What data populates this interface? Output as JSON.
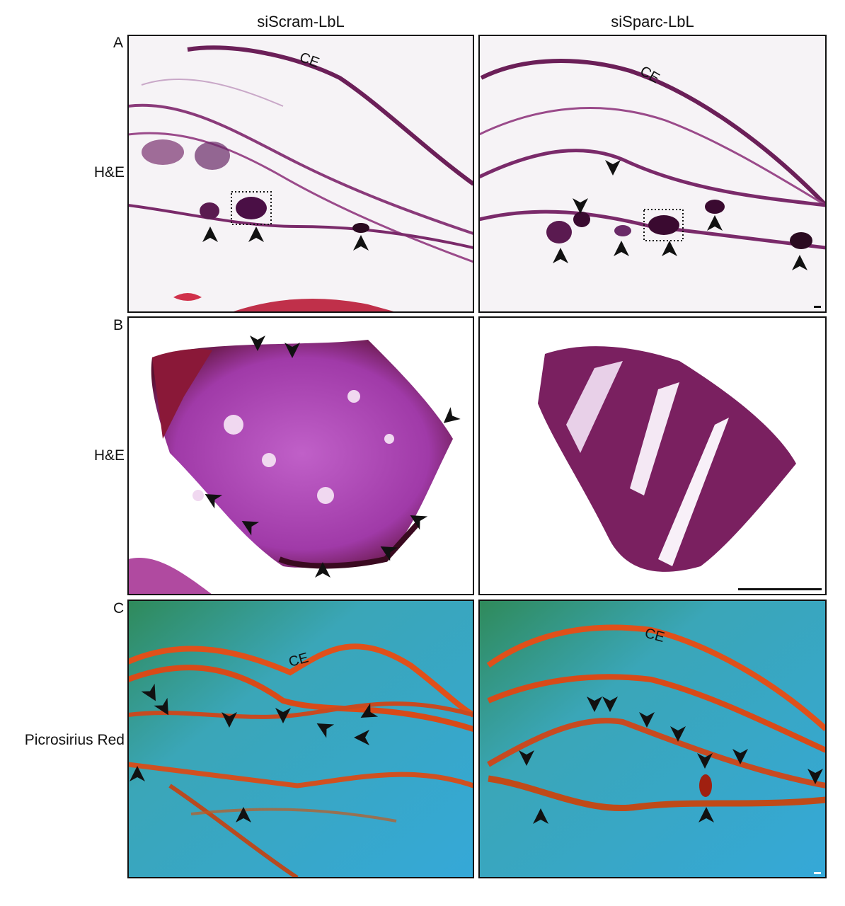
{
  "columns": [
    "siScram-LbL",
    "siSparc-LbL"
  ],
  "rows": [
    {
      "letter": "A",
      "label": "H&E",
      "annotations": [
        "CE",
        "CE"
      ]
    },
    {
      "letter": "B",
      "label": "H&E"
    },
    {
      "letter": "C",
      "label": "Picrosirius Red",
      "annotations": [
        "CE",
        "CE"
      ]
    }
  ]
}
